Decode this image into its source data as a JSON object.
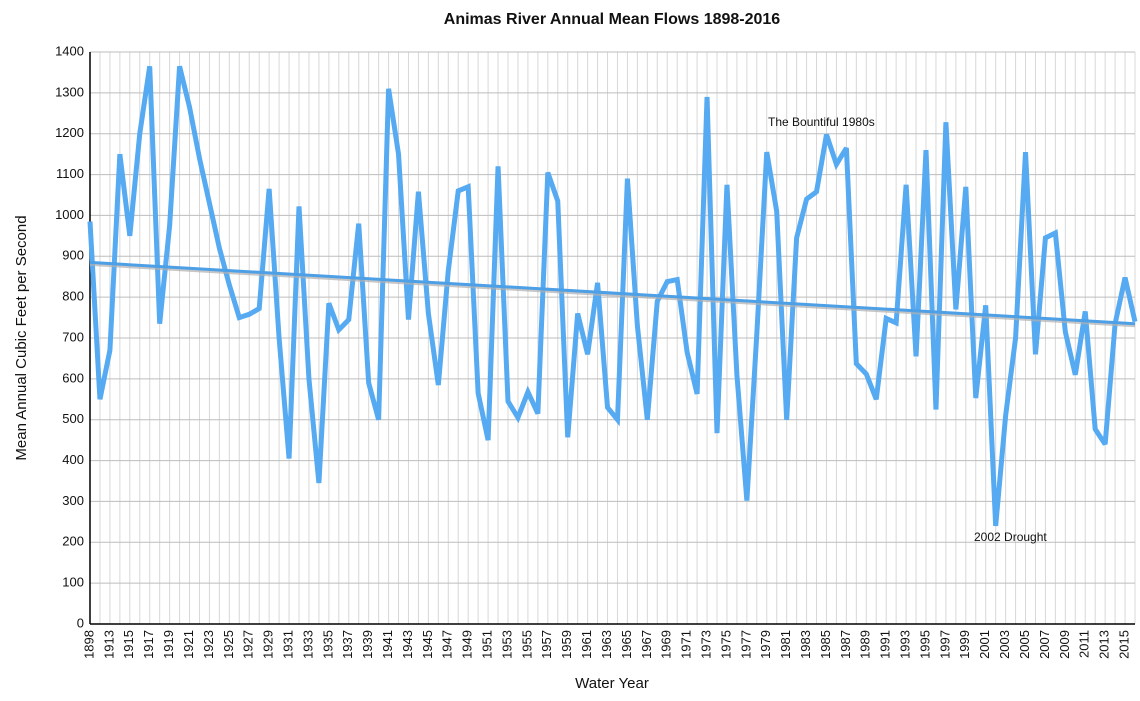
{
  "chart_data": {
    "type": "line",
    "title": "Animas River Annual Mean Flows 1898-2016",
    "x_label": "Water Year",
    "y_label": "Mean Annual Cubic Feet per Second",
    "categories": [
      "1898",
      null,
      "1913",
      null,
      "1915",
      null,
      "1917",
      null,
      "1919",
      null,
      "1921",
      null,
      "1923",
      null,
      "1925",
      null,
      "1927",
      null,
      "1929",
      null,
      "1931",
      null,
      "1933",
      null,
      "1935",
      null,
      "1937",
      null,
      "1939",
      null,
      "1941",
      null,
      "1943",
      null,
      "1945",
      null,
      "1947",
      null,
      "1949",
      null,
      "1951",
      null,
      "1953",
      null,
      "1955",
      null,
      "1957",
      null,
      "1959",
      null,
      "1961",
      null,
      "1963",
      null,
      "1965",
      null,
      "1967",
      null,
      "1969",
      null,
      "1971",
      null,
      "1973",
      null,
      "1975",
      null,
      "1977",
      null,
      "1979",
      null,
      "1981",
      null,
      "1983",
      null,
      "1985",
      null,
      "1987",
      null,
      "1989",
      null,
      "1991",
      null,
      "1993",
      null,
      "1995",
      null,
      "1997",
      null,
      "1999",
      null,
      "2001",
      null,
      "2003",
      null,
      "2005",
      null,
      "2007",
      null,
      "2009",
      null,
      "2011",
      null,
      "2013",
      null,
      "2015",
      null
    ],
    "series": [
      {
        "color": "#55aaf2",
        "values": [
          985,
          550,
          670,
          1150,
          950,
          1200,
          1365,
          735,
          975,
          1365,
          1265,
          1140,
          1030,
          920,
          830,
          750,
          758,
          772,
          1065,
          700,
          405,
          1022,
          600,
          345,
          785,
          720,
          745,
          980,
          590,
          500,
          1310,
          1150,
          745,
          1058,
          760,
          585,
          865,
          1060,
          1070,
          565,
          450,
          1120,
          545,
          505,
          568,
          515,
          1105,
          1035,
          457,
          760,
          660,
          835,
          530,
          500,
          1090,
          730,
          500,
          790,
          838,
          843,
          665,
          563,
          1290,
          467,
          1075,
          610,
          302,
          710,
          1155,
          1010,
          500,
          945,
          1040,
          1058,
          1198,
          1125,
          1165,
          637,
          612,
          550,
          748,
          737,
          1075,
          655,
          1160,
          525,
          1228,
          770,
          1070,
          553,
          780,
          240,
          510,
          700,
          1155,
          660,
          945,
          957,
          715,
          610,
          765,
          477,
          440,
          735,
          848,
          740
        ]
      }
    ],
    "trend": {
      "color": "#4d9fe6",
      "values": [
        885,
        735
      ]
    },
    "annotations": [
      "The Bountiful 1980s",
      "2002 Drought"
    ],
    "ylim": [
      0,
      1400
    ],
    "yticks": [
      0,
      100,
      200,
      300,
      400,
      500,
      600,
      700,
      800,
      900,
      1000,
      1100,
      1200,
      1300,
      1400
    ],
    "grid": true
  }
}
